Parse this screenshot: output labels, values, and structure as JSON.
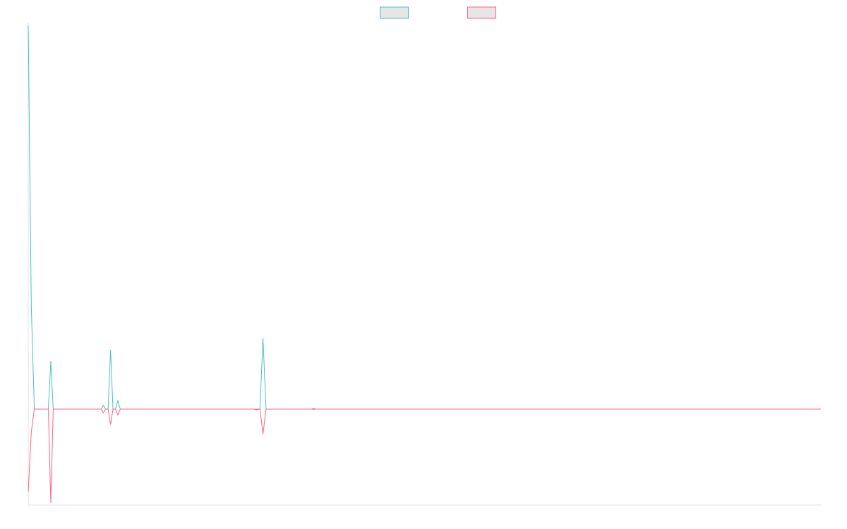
{
  "chart_data": {
    "type": "line",
    "title": "",
    "xlabel": "",
    "ylabel": "",
    "grid": false,
    "legend_position": "top-center",
    "x_range": [
      0,
      130
    ],
    "ylim": [
      -0.25,
      1.0
    ],
    "series": [
      {
        "color": "#4bc0c0",
        "fill": "#e6e6e6",
        "points": [
          [
            0,
            1.0
          ],
          [
            0.5,
            0.27
          ],
          [
            1,
            0
          ],
          [
            3,
            0
          ],
          [
            3.3,
            0
          ],
          [
            3.7,
            0.125
          ],
          [
            4.1,
            0
          ],
          [
            12,
            0
          ],
          [
            12.3,
            0.01
          ],
          [
            12.7,
            0
          ],
          [
            13.1,
            0
          ],
          [
            13.5,
            0.155
          ],
          [
            13.9,
            0
          ],
          [
            14.3,
            0
          ],
          [
            14.7,
            0.022
          ],
          [
            15.1,
            0
          ],
          [
            37,
            0
          ],
          [
            37.4,
            0
          ],
          [
            38,
            0
          ],
          [
            38.5,
            0.185
          ],
          [
            39,
            0
          ],
          [
            46.5,
            0
          ],
          [
            46.8,
            0.002
          ],
          [
            47.1,
            0
          ],
          [
            130,
            0
          ]
        ]
      },
      {
        "color": "#ff6384",
        "fill": "#e6e6e6",
        "points": [
          [
            0,
            -0.215
          ],
          [
            0.5,
            -0.06
          ],
          [
            1,
            0
          ],
          [
            3,
            0
          ],
          [
            3.3,
            0
          ],
          [
            3.7,
            -0.245
          ],
          [
            4.1,
            0
          ],
          [
            12,
            0
          ],
          [
            12.3,
            -0.01
          ],
          [
            12.7,
            0
          ],
          [
            13.1,
            0
          ],
          [
            13.5,
            -0.04
          ],
          [
            13.9,
            0
          ],
          [
            14.3,
            0
          ],
          [
            14.7,
            -0.015
          ],
          [
            15.1,
            0
          ],
          [
            37,
            0
          ],
          [
            37.4,
            -0.002
          ],
          [
            38,
            0
          ],
          [
            38.5,
            -0.065
          ],
          [
            39,
            0
          ],
          [
            46.5,
            0
          ],
          [
            46.8,
            -0.001
          ],
          [
            47.1,
            0
          ],
          [
            130,
            0
          ]
        ]
      }
    ]
  }
}
